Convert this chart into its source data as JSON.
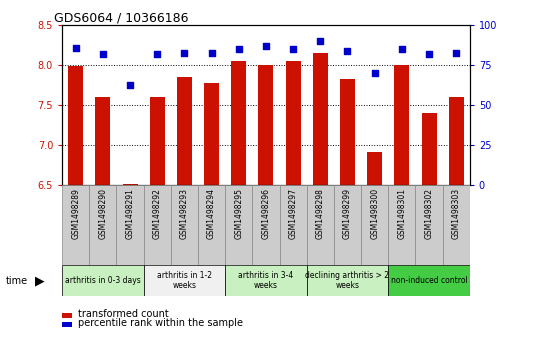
{
  "title": "GDS6064 / 10366186",
  "samples": [
    "GSM1498289",
    "GSM1498290",
    "GSM1498291",
    "GSM1498292",
    "GSM1498293",
    "GSM1498294",
    "GSM1498295",
    "GSM1498296",
    "GSM1498297",
    "GSM1498298",
    "GSM1498299",
    "GSM1498300",
    "GSM1498301",
    "GSM1498302",
    "GSM1498303"
  ],
  "transformed_count": [
    7.99,
    7.6,
    6.52,
    7.6,
    7.85,
    7.78,
    8.05,
    8.0,
    8.05,
    8.15,
    7.83,
    6.91,
    8.01,
    7.4,
    7.6
  ],
  "percentile_rank": [
    86,
    82,
    63,
    82,
    83,
    83,
    85,
    87,
    85,
    90,
    84,
    70,
    85,
    82,
    83
  ],
  "ylim_left": [
    6.5,
    8.5
  ],
  "ylim_right": [
    0,
    100
  ],
  "yticks_left": [
    6.5,
    7.0,
    7.5,
    8.0,
    8.5
  ],
  "yticks_right": [
    0,
    25,
    50,
    75,
    100
  ],
  "groups": [
    {
      "label": "arthritis in 0-3 days",
      "start": 0,
      "end": 3,
      "color": "#c8f0c0"
    },
    {
      "label": "arthritis in 1-2\nweeks",
      "start": 3,
      "end": 6,
      "color": "#f0f0f0"
    },
    {
      "label": "arthritis in 3-4\nweeks",
      "start": 6,
      "end": 9,
      "color": "#c8f0c0"
    },
    {
      "label": "declining arthritis > 2\nweeks",
      "start": 9,
      "end": 12,
      "color": "#c8f0c0"
    },
    {
      "label": "non-induced control",
      "start": 12,
      "end": 15,
      "color": "#44cc44"
    }
  ],
  "bar_color": "#cc1100",
  "dot_color": "#0000cc",
  "left_tick_color": "#cc1100",
  "right_tick_color": "#0000cc",
  "legend_bar_label": "transformed count",
  "legend_dot_label": "percentile rank within the sample",
  "sample_bg_color": "#cccccc",
  "sample_border_color": "#888888"
}
